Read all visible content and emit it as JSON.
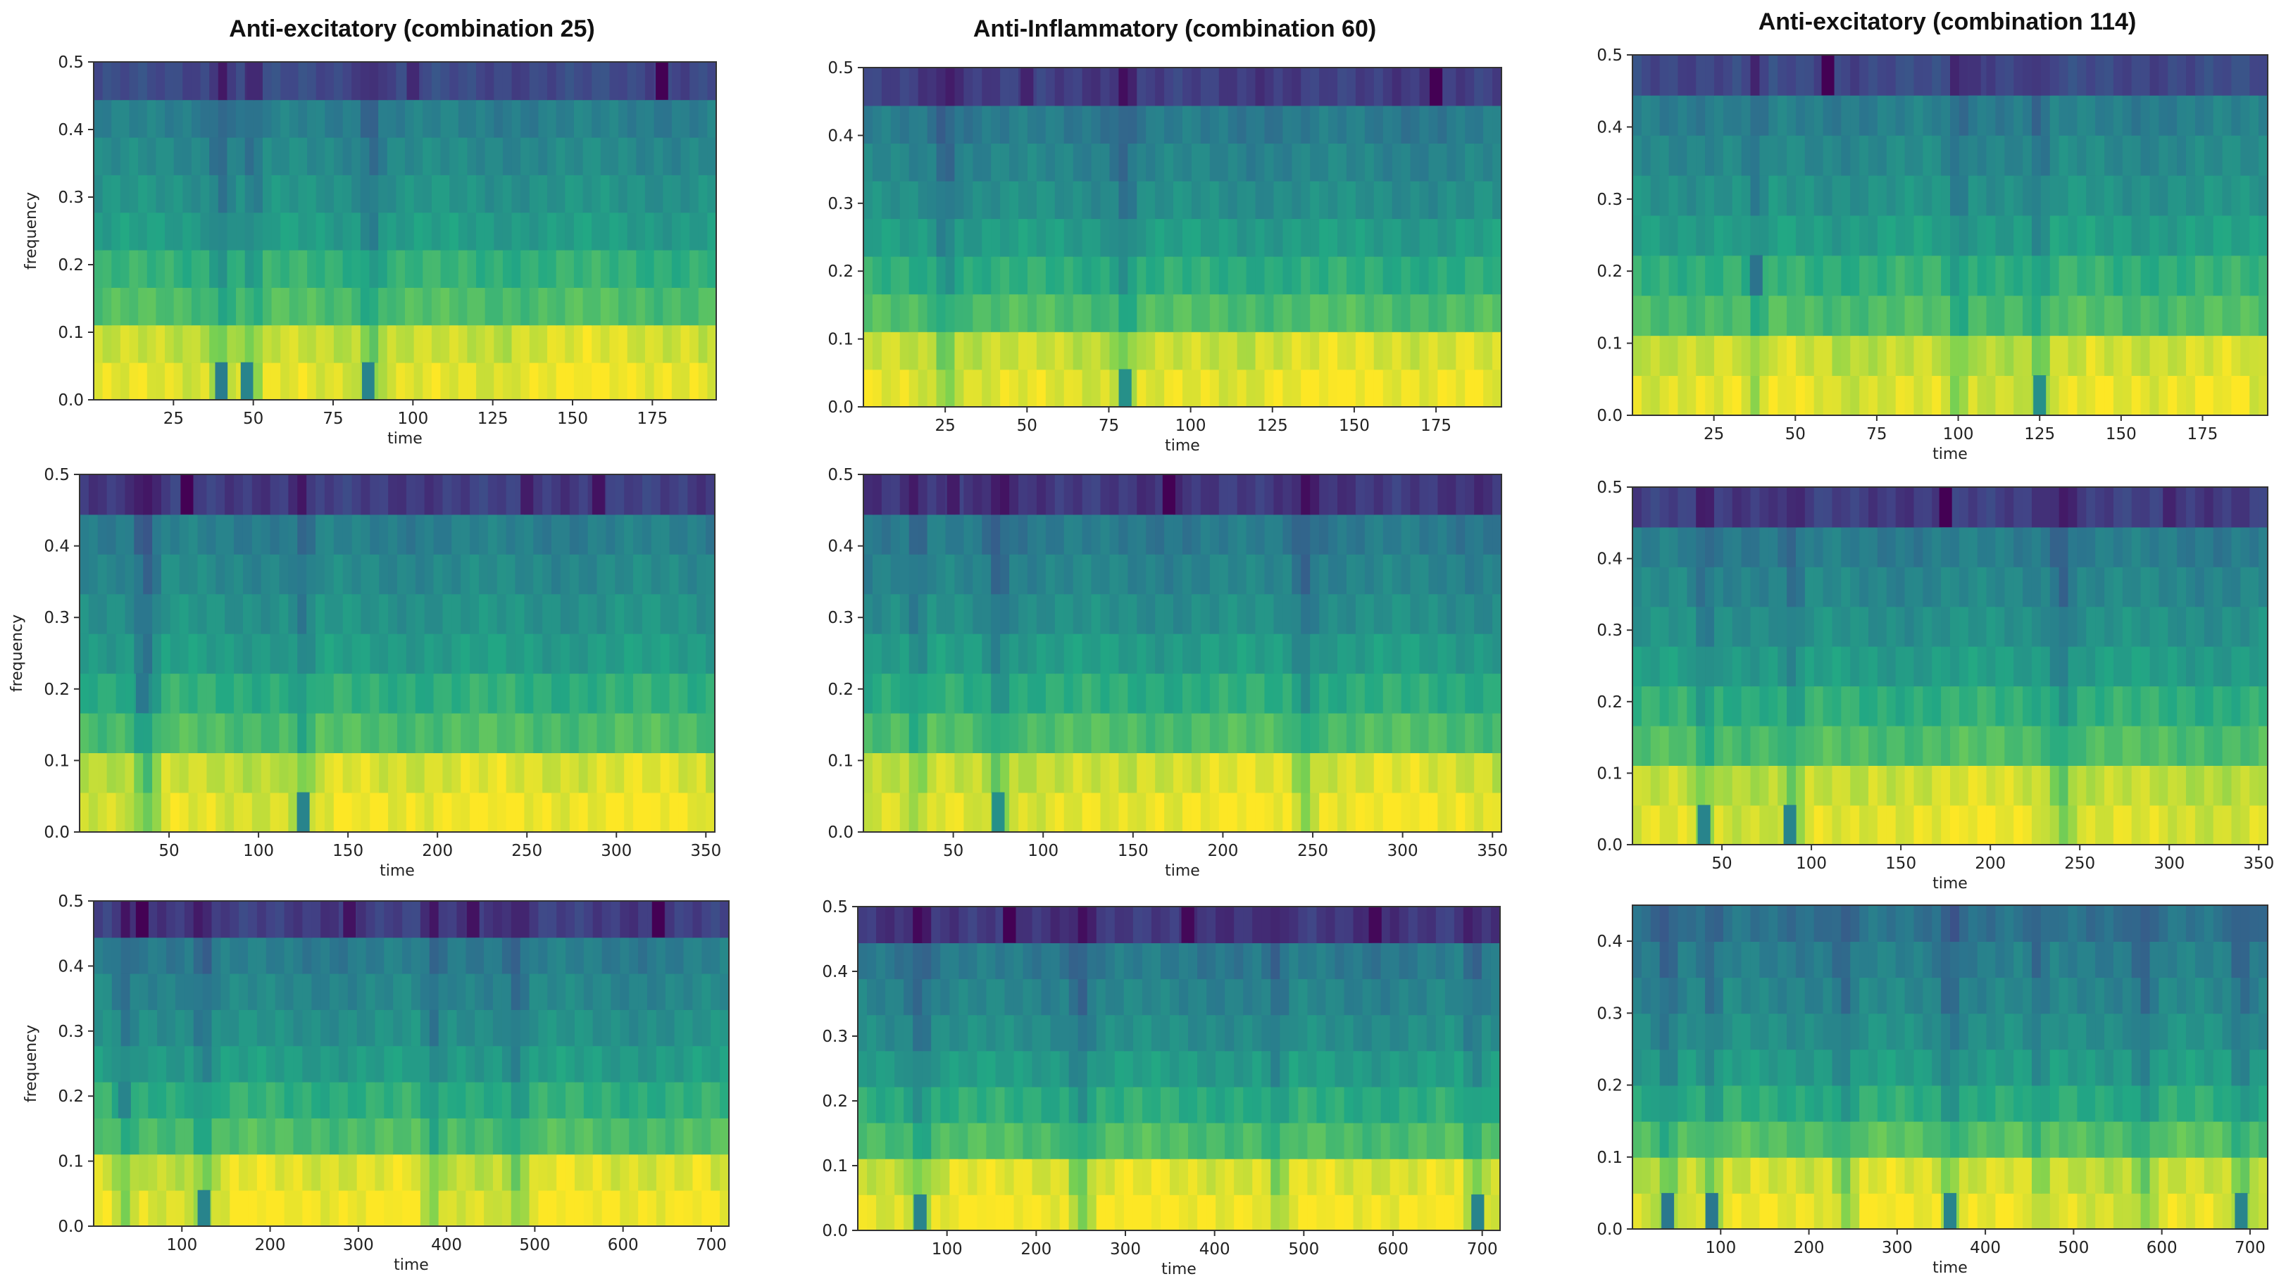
{
  "titles": [
    "Anti-excitatory (combination 25)",
    "Anti-Inflammatory (combination 60)",
    "Anti-excitatory (combination 114)"
  ],
  "colormap": [
    "#440154",
    "#414487",
    "#2a788e",
    "#22a884",
    "#7ad151",
    "#fde725"
  ],
  "chart_data": [
    {
      "id": "r1c1",
      "type": "heatmap",
      "xlabel": "time",
      "ylabel": "frequency",
      "xlim": [
        0,
        195
      ],
      "ylim": [
        0,
        0.5
      ],
      "xticks": [
        25,
        50,
        75,
        100,
        125,
        150,
        175
      ],
      "yticks": [
        0.0,
        0.1,
        0.2,
        0.3,
        0.4,
        0.5
      ],
      "bands": [
        0.025,
        0.083,
        0.139,
        0.194,
        0.25,
        0.306,
        0.361,
        0.417,
        0.472
      ],
      "levels": [
        0.95,
        0.91,
        0.7,
        0.64,
        0.55,
        0.51,
        0.47,
        0.43,
        0.22
      ],
      "dark_vlines": [
        40,
        50,
        87
      ],
      "bright_regions": [
        [
          130,
          190
        ]
      ],
      "hot_cells": [
        {
          "t": 40,
          "v": 0.03,
          "level": 0.42
        },
        {
          "t": 48,
          "v": 0.03,
          "level": 0.45
        },
        {
          "t": 86,
          "v": 0.03,
          "level": 0.45
        },
        {
          "t": 178,
          "v": 0.472,
          "level": 0.0
        },
        {
          "t": 50,
          "v": 0.472,
          "level": 0.12
        },
        {
          "t": 100,
          "v": 0.472,
          "level": 0.12
        }
      ]
    },
    {
      "id": "r1c2",
      "type": "heatmap",
      "xlabel": "time",
      "ylabel": "",
      "xlim": [
        0,
        195
      ],
      "ylim": [
        0,
        0.5
      ],
      "xticks": [
        25,
        50,
        75,
        100,
        125,
        150,
        175
      ],
      "yticks": [
        0.0,
        0.1,
        0.2,
        0.3,
        0.4,
        0.5
      ],
      "bands": [
        0.025,
        0.083,
        0.139,
        0.194,
        0.25,
        0.306,
        0.361,
        0.417,
        0.472
      ],
      "levels": [
        0.95,
        0.91,
        0.7,
        0.62,
        0.55,
        0.49,
        0.45,
        0.41,
        0.18
      ],
      "dark_vlines": [
        25,
        80
      ],
      "bright_regions": [
        [
          120,
          190
        ]
      ],
      "hot_cells": [
        {
          "t": 80,
          "v": 0.03,
          "level": 0.5
        },
        {
          "t": 175,
          "v": 0.472,
          "level": 0.0
        },
        {
          "t": 50,
          "v": 0.472,
          "level": 0.1
        }
      ]
    },
    {
      "id": "r1c3",
      "type": "heatmap",
      "xlabel": "time",
      "ylabel": "",
      "xlim": [
        0,
        195
      ],
      "ylim": [
        0,
        0.5
      ],
      "xticks": [
        25,
        50,
        75,
        100,
        125,
        150,
        175
      ],
      "yticks": [
        0.0,
        0.1,
        0.2,
        0.3,
        0.4,
        0.5
      ],
      "bands": [
        0.025,
        0.083,
        0.139,
        0.194,
        0.25,
        0.306,
        0.361,
        0.417,
        0.472
      ],
      "levels": [
        0.94,
        0.9,
        0.7,
        0.64,
        0.56,
        0.51,
        0.47,
        0.43,
        0.22
      ],
      "dark_vlines": [
        38,
        100,
        125
      ],
      "bright_regions": [
        [
          10,
          60
        ],
        [
          140,
          190
        ]
      ],
      "hot_cells": [
        {
          "t": 125,
          "v": 0.03,
          "level": 0.5
        },
        {
          "t": 38,
          "v": 0.194,
          "level": 0.38
        },
        {
          "t": 60,
          "v": 0.472,
          "level": 0.0
        },
        {
          "t": 105,
          "v": 0.472,
          "level": 0.15
        }
      ]
    },
    {
      "id": "r2c1",
      "type": "heatmap",
      "xlabel": "time",
      "ylabel": "frequency",
      "xlim": [
        0,
        355
      ],
      "ylim": [
        0,
        0.5
      ],
      "xticks": [
        50,
        100,
        150,
        200,
        250,
        300,
        350
      ],
      "yticks": [
        0.0,
        0.1,
        0.2,
        0.3,
        0.4,
        0.5
      ],
      "bands": [
        0.025,
        0.083,
        0.139,
        0.194,
        0.25,
        0.306,
        0.361,
        0.417,
        0.472
      ],
      "levels": [
        0.95,
        0.91,
        0.7,
        0.63,
        0.55,
        0.51,
        0.47,
        0.43,
        0.18
      ],
      "dark_vlines": [
        35,
        40,
        125
      ],
      "bright_regions": [
        [
          140,
          350
        ]
      ],
      "hot_cells": [
        {
          "t": 125,
          "v": 0.03,
          "level": 0.45
        },
        {
          "t": 35,
          "v": 0.194,
          "level": 0.4
        },
        {
          "t": 60,
          "v": 0.472,
          "level": 0.0
        },
        {
          "t": 290,
          "v": 0.472,
          "level": 0.05
        },
        {
          "t": 250,
          "v": 0.472,
          "level": 0.08
        }
      ]
    },
    {
      "id": "r2c2",
      "type": "heatmap",
      "xlabel": "time",
      "ylabel": "",
      "xlim": [
        0,
        355
      ],
      "ylim": [
        0,
        0.5
      ],
      "xticks": [
        50,
        100,
        150,
        200,
        250,
        300,
        350
      ],
      "yticks": [
        0.0,
        0.1,
        0.2,
        0.3,
        0.4,
        0.5
      ],
      "bands": [
        0.025,
        0.083,
        0.139,
        0.194,
        0.25,
        0.306,
        0.361,
        0.417,
        0.472
      ],
      "levels": [
        0.95,
        0.91,
        0.7,
        0.62,
        0.55,
        0.49,
        0.45,
        0.41,
        0.16
      ],
      "dark_vlines": [
        30,
        75,
        245
      ],
      "bright_regions": [
        [
          150,
          350
        ]
      ],
      "hot_cells": [
        {
          "t": 75,
          "v": 0.03,
          "level": 0.5
        },
        {
          "t": 170,
          "v": 0.472,
          "level": 0.0
        },
        {
          "t": 50,
          "v": 0.472,
          "level": 0.08
        }
      ]
    },
    {
      "id": "r2c3",
      "type": "heatmap",
      "xlabel": "time",
      "ylabel": "",
      "xlim": [
        0,
        355
      ],
      "ylim": [
        0,
        0.5
      ],
      "xticks": [
        50,
        100,
        150,
        200,
        250,
        300,
        350
      ],
      "yticks": [
        0.0,
        0.1,
        0.2,
        0.3,
        0.4,
        0.5
      ],
      "bands": [
        0.025,
        0.083,
        0.139,
        0.194,
        0.25,
        0.306,
        0.361,
        0.417,
        0.472
      ],
      "levels": [
        0.94,
        0.9,
        0.7,
        0.63,
        0.55,
        0.5,
        0.46,
        0.42,
        0.18
      ],
      "dark_vlines": [
        40,
        90,
        240
      ],
      "bright_regions": [
        [
          130,
          230
        ]
      ],
      "hot_cells": [
        {
          "t": 40,
          "v": 0.03,
          "level": 0.45
        },
        {
          "t": 88,
          "v": 0.03,
          "level": 0.45
        },
        {
          "t": 175,
          "v": 0.472,
          "level": 0.0
        },
        {
          "t": 300,
          "v": 0.472,
          "level": 0.1
        }
      ]
    },
    {
      "id": "r3c1",
      "type": "heatmap",
      "xlabel": "time",
      "ylabel": "frequency",
      "xlim": [
        0,
        720
      ],
      "ylim": [
        0,
        0.5
      ],
      "xticks": [
        100,
        200,
        300,
        400,
        500,
        600,
        700
      ],
      "yticks": [
        0.0,
        0.1,
        0.2,
        0.3,
        0.4,
        0.5
      ],
      "bands": [
        0.025,
        0.083,
        0.139,
        0.194,
        0.25,
        0.306,
        0.361,
        0.417,
        0.472
      ],
      "levels": [
        0.96,
        0.92,
        0.7,
        0.63,
        0.55,
        0.5,
        0.46,
        0.42,
        0.18
      ],
      "dark_vlines": [
        35,
        125,
        385,
        480
      ],
      "bright_regions": [
        [
          150,
          370
        ],
        [
          500,
          700
        ]
      ],
      "hot_cells": [
        {
          "t": 125,
          "v": 0.03,
          "level": 0.45
        },
        {
          "t": 35,
          "v": 0.194,
          "level": 0.45
        },
        {
          "t": 55,
          "v": 0.472,
          "level": 0.0
        },
        {
          "t": 640,
          "v": 0.472,
          "level": 0.0
        },
        {
          "t": 290,
          "v": 0.472,
          "level": 0.05
        },
        {
          "t": 430,
          "v": 0.472,
          "level": 0.05
        }
      ]
    },
    {
      "id": "r3c2",
      "type": "heatmap",
      "xlabel": "time",
      "ylabel": "",
      "xlim": [
        0,
        720
      ],
      "ylim": [
        0,
        0.5
      ],
      "xticks": [
        100,
        200,
        300,
        400,
        500,
        600,
        700
      ],
      "yticks": [
        0.0,
        0.1,
        0.2,
        0.3,
        0.4,
        0.5
      ],
      "bands": [
        0.025,
        0.083,
        0.139,
        0.194,
        0.25,
        0.306,
        0.361,
        0.417,
        0.472
      ],
      "levels": [
        0.96,
        0.92,
        0.7,
        0.62,
        0.55,
        0.49,
        0.45,
        0.41,
        0.16
      ],
      "dark_vlines": [
        70,
        250,
        470,
        690
      ],
      "bright_regions": [
        [
          100,
          240
        ],
        [
          270,
          460
        ],
        [
          490,
          680
        ]
      ],
      "hot_cells": [
        {
          "t": 70,
          "v": 0.03,
          "level": 0.45
        },
        {
          "t": 695,
          "v": 0.03,
          "level": 0.45
        },
        {
          "t": 170,
          "v": 0.472,
          "level": 0.0
        },
        {
          "t": 370,
          "v": 0.472,
          "level": 0.02
        },
        {
          "t": 580,
          "v": 0.472,
          "level": 0.02
        }
      ]
    },
    {
      "id": "r3c3",
      "type": "heatmap",
      "xlabel": "time",
      "ylabel": "",
      "xlim": [
        0,
        720
      ],
      "ylim": [
        0,
        0.45
      ],
      "xticks": [
        100,
        200,
        300,
        400,
        500,
        600,
        700
      ],
      "yticks": [
        0.0,
        0.1,
        0.2,
        0.3,
        0.4
      ],
      "bands": [
        0.025,
        0.075,
        0.125,
        0.175,
        0.225,
        0.275,
        0.325,
        0.375,
        0.425
      ],
      "levels": [
        0.95,
        0.91,
        0.72,
        0.62,
        0.55,
        0.5,
        0.46,
        0.43,
        0.38
      ],
      "dark_vlines": [
        40,
        90,
        240,
        360,
        460,
        580,
        690
      ],
      "bright_regions": [
        [
          130,
          240
        ],
        [
          260,
          460
        ]
      ],
      "hot_cells": [
        {
          "t": 40,
          "v": 0.03,
          "level": 0.4
        },
        {
          "t": 90,
          "v": 0.03,
          "level": 0.4
        },
        {
          "t": 360,
          "v": 0.03,
          "level": 0.45
        },
        {
          "t": 690,
          "v": 0.03,
          "level": 0.45
        }
      ]
    }
  ]
}
